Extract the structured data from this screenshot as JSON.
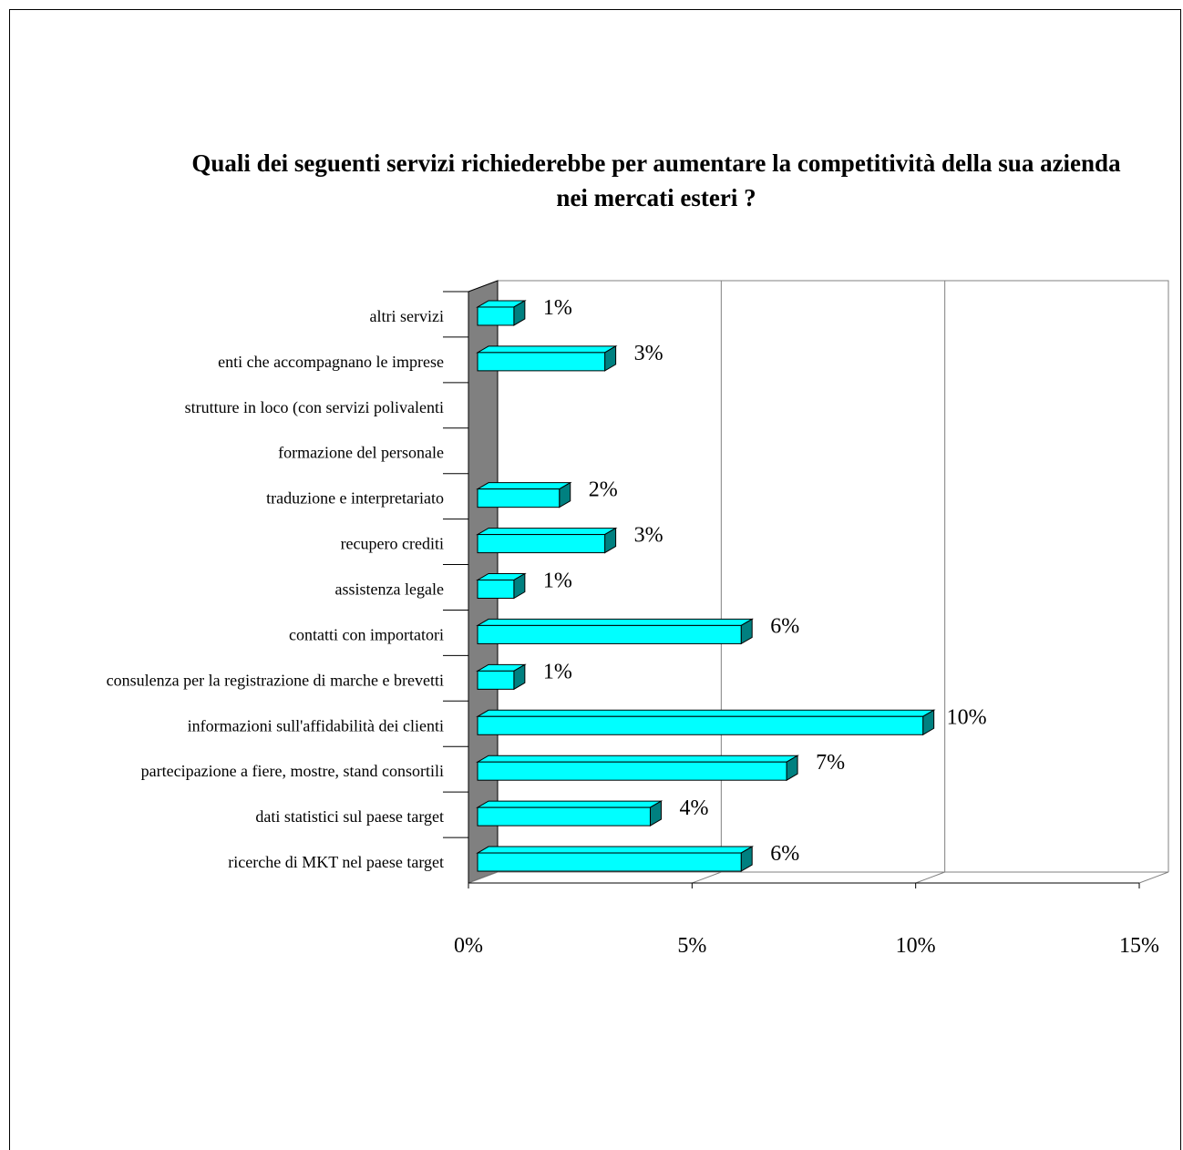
{
  "chart_data": {
    "type": "bar",
    "orientation": "horizontal",
    "title": "Quali dei seguenti servizi richiederebbe per aumentare la competitività della sua azienda nei mercati esteri ?",
    "xlabel": "",
    "ylabel": "",
    "xlim": [
      0,
      15
    ],
    "ticks": [
      "0%",
      "5%",
      "10%",
      "15%"
    ],
    "tick_values": [
      0,
      5,
      10,
      15
    ],
    "grid": true,
    "three_d": true,
    "colors": {
      "bar_face": "#00FFFF",
      "bar_top": "#00FFFF",
      "bar_side": "#008080",
      "wall": "#808080"
    },
    "categories": [
      "altri servizi",
      "enti che accompagnano le imprese",
      "strutture in loco (con servizi polivalenti",
      "formazione del personale",
      "traduzione e interpretariato",
      "recupero crediti",
      "assistenza legale",
      "contatti con importatori",
      "consulenza per la registrazione di marche e brevetti",
      "informazioni sull'affidabilità dei clienti",
      "partecipazione a fiere, mostre, stand consortili",
      "dati statistici sul paese target",
      "ricerche di MKT nel paese target"
    ],
    "values": [
      1,
      3,
      null,
      null,
      2,
      3,
      1,
      6,
      1,
      10,
      7,
      4,
      6
    ],
    "value_labels": [
      "1%",
      "3%",
      "",
      "",
      "2%",
      "3%",
      "1%",
      "6%",
      "1%",
      "10%",
      "7%",
      "4%",
      "6%"
    ]
  }
}
